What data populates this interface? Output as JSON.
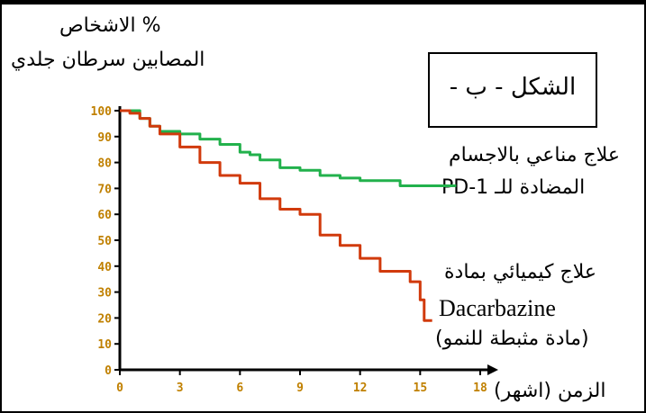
{
  "labels": {
    "y_line1": "% الاشخاص",
    "y_line2": "المصابين سرطان جلدي",
    "figure": "الشكل - ب -",
    "pd1_line1": "علاج مناعي بالاجسام",
    "pd1_line2": "المضادة للـ PD-1",
    "dac_line1": "علاج كيميائي بمادة",
    "dac_line2": "Dacarbazine",
    "dac_line3": "(مادة مثبطة للنمو)",
    "x_axis": "الزمن (اشهر)"
  },
  "colors": {
    "pd1": "#22b14c",
    "dacarbazine": "#d13a0c",
    "ticks": "#c08000"
  },
  "chart_data": {
    "type": "line",
    "title": "",
    "xlabel": "الزمن (اشهر)",
    "ylabel": "% الاشخاص المصابين سرطان جلدي",
    "xlim": [
      0,
      18
    ],
    "ylim": [
      0,
      100
    ],
    "xticks": [
      0,
      3,
      6,
      9,
      12,
      15,
      18
    ],
    "yticks": [
      0,
      10,
      20,
      30,
      40,
      50,
      60,
      70,
      80,
      90,
      100
    ],
    "grid": false,
    "series": [
      {
        "name": "علاج مناعي بالاجسام المضادة للـ PD-1",
        "x": [
          0,
          1,
          1.5,
          2,
          3,
          4,
          5,
          6,
          6.5,
          7,
          8,
          9,
          10,
          11,
          12,
          13,
          14,
          15,
          16,
          16.8
        ],
        "y": [
          100,
          97,
          94,
          92,
          91,
          89,
          87,
          84,
          83,
          81,
          78,
          77,
          75,
          74,
          73,
          73,
          71,
          71,
          71,
          71
        ]
      },
      {
        "name": "علاج كيميائي بمادة Dacarbazine (مادة مثبطة للنمو)",
        "x": [
          0,
          0.5,
          1,
          1.5,
          2,
          3,
          4,
          5,
          6,
          7,
          8,
          9,
          10,
          11,
          12,
          13,
          14,
          14.5,
          15,
          15.2,
          15.6
        ],
        "y": [
          100,
          99,
          97,
          94,
          91,
          86,
          80,
          75,
          72,
          66,
          62,
          60,
          52,
          48,
          43,
          38,
          38,
          34,
          27,
          19,
          19
        ]
      }
    ]
  }
}
